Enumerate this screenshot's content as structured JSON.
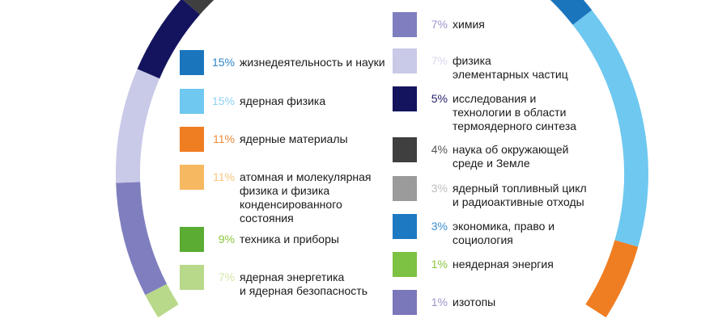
{
  "chart_data": {
    "type": "pie",
    "variant": "donut",
    "title": "",
    "legend_placement": "inside",
    "slices": [
      {
        "value": 15,
        "pct_label": "15%",
        "label": "жизнедеятельность и науки",
        "color": "#1b75bc",
        "text_color": "#2f86c9"
      },
      {
        "value": 15,
        "pct_label": "15%",
        "label": "ядерная физика",
        "color": "#6fc8f0",
        "text_color": "#8fd3f2"
      },
      {
        "value": 11,
        "pct_label": "11%",
        "label": "ядерные материалы",
        "color": "#ef7d22",
        "text_color": "#ef8a3a"
      },
      {
        "value": 11,
        "pct_label": "11%",
        "label": "атомная и молекулярная\nфизика и физика\nконденсированного\nсостояния",
        "color": "#f7b862",
        "text_color": "#f7c67e"
      },
      {
        "value": 9,
        "pct_label": "9%",
        "label": "техника и приборы",
        "color": "#5aac32",
        "text_color": "#8cc63f"
      },
      {
        "value": 7,
        "pct_label": "7%",
        "label": "ядерная энергетика\nи ядерная безопасность",
        "color": "#b9d98a",
        "text_color": "#d3e6a8"
      },
      {
        "value": 7,
        "pct_label": "7%",
        "label": "химия",
        "color": "#7f7fbf",
        "text_color": "#9a96cc"
      },
      {
        "value": 7,
        "pct_label": "7%",
        "label": "физика\nэлементарных частиц",
        "color": "#c9c9e8",
        "text_color": "#d8d8ee"
      },
      {
        "value": 5,
        "pct_label": "5%",
        "label": "исследования и\nтехнологии в области\nтермоядерного синтеза",
        "color": "#14145e",
        "text_color": "#23236e"
      },
      {
        "value": 4,
        "pct_label": "4%",
        "label": "наука об окружающей\nсреде и Земле",
        "color": "#3f3f3f",
        "text_color": "#555555"
      },
      {
        "value": 3,
        "pct_label": "3%",
        "label": "ядерный топливный цикл\nи радиоактивные отходы",
        "color": "#9b9b9b",
        "text_color": "#bdbdbd"
      },
      {
        "value": 3,
        "pct_label": "3%",
        "label": "экономика, право и\nсоциология",
        "color": "#1d79c2",
        "text_color": "#3b8fd0"
      },
      {
        "value": 1,
        "pct_label": "1%",
        "label": "неядерная энергия",
        "color": "#7dc242",
        "text_color": "#8cc63f"
      },
      {
        "value": 1,
        "pct_label": "1%",
        "label": "изотопы",
        "color": "#7b77bb",
        "text_color": "#9a96cc"
      }
    ]
  }
}
